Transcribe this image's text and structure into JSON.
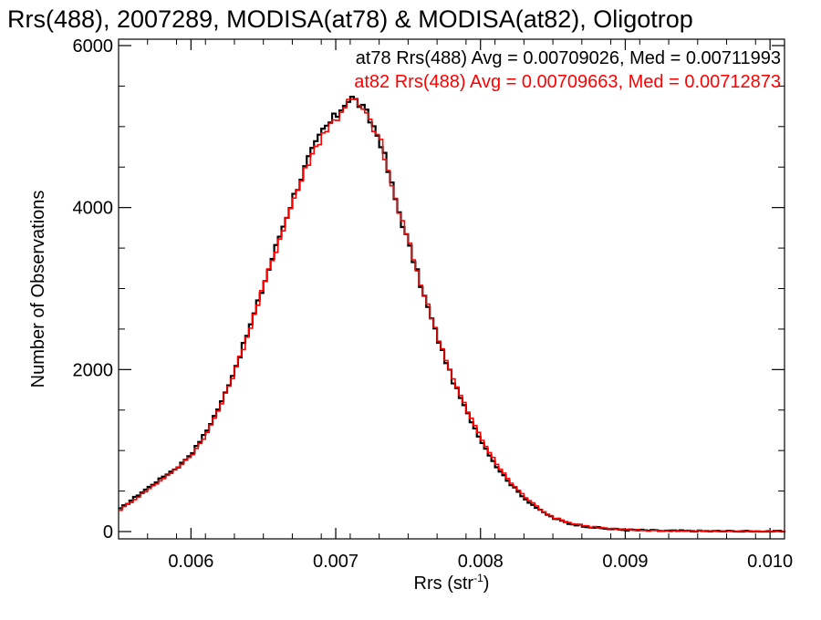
{
  "chart_data": {
    "type": "line",
    "title": "Rrs(488), 2007289, MODISA(at78) & MODISA(at82), Oligotrop",
    "xlabel_main": "Rrs (str",
    "xlabel_sup": "-1",
    "xlabel_close": ")",
    "ylabel": "Number of Observations",
    "xlim": [
      0.0055,
      0.0101
    ],
    "ylim": [
      0,
      6000
    ],
    "x_tick_labels": [
      {
        "value": 0.006,
        "label": "0.006"
      },
      {
        "value": 0.007,
        "label": "0.007"
      },
      {
        "value": 0.008,
        "label": "0.008"
      },
      {
        "value": 0.009,
        "label": "0.009"
      },
      {
        "value": 0.01,
        "label": "0.010"
      }
    ],
    "y_tick_labels": [
      {
        "value": 0,
        "label": "0"
      },
      {
        "value": 2000,
        "label": "2000"
      },
      {
        "value": 4000,
        "label": "4000"
      },
      {
        "value": 6000,
        "label": "6000"
      }
    ],
    "grid": false,
    "histogram_style": "step",
    "annotations": [
      {
        "text": "at78 Rrs(488) Avg = 0.00709026, Med = 0.00711993",
        "color": "#000000"
      },
      {
        "text": "at82 Rrs(488) Avg = 0.00709663, Med = 0.00712873",
        "color": "#ff0000"
      }
    ],
    "x": [
      0.0055,
      0.0056,
      0.0057,
      0.0058,
      0.0059,
      0.006,
      0.0061,
      0.0062,
      0.0063,
      0.0064,
      0.0065,
      0.0066,
      0.0067,
      0.0068,
      0.0069,
      0.007,
      0.00705,
      0.0071,
      0.00715,
      0.0072,
      0.00725,
      0.0073,
      0.0074,
      0.0075,
      0.0076,
      0.0077,
      0.0078,
      0.0079,
      0.008,
      0.0081,
      0.0082,
      0.0083,
      0.0084,
      0.0085,
      0.0086,
      0.0087,
      0.0088,
      0.0089,
      0.009,
      0.0091,
      0.0092,
      0.0093,
      0.0094,
      0.0095,
      0.0096,
      0.0097,
      0.0098,
      0.0099,
      0.01,
      0.0101
    ],
    "series": [
      {
        "name": "at78",
        "color": "#000000",
        "values": [
          280,
          420,
          550,
          680,
          800,
          980,
          1250,
          1600,
          2050,
          2550,
          3100,
          3650,
          4150,
          4600,
          4950,
          5150,
          5300,
          5350,
          5280,
          5150,
          5000,
          4800,
          4100,
          3500,
          2900,
          2350,
          1850,
          1450,
          1100,
          800,
          580,
          400,
          260,
          160,
          100,
          70,
          45,
          30,
          20,
          15,
          10,
          8,
          6,
          5,
          4,
          3,
          2,
          2,
          1,
          1
        ]
      },
      {
        "name": "at82",
        "color": "#ff0000",
        "values": [
          270,
          400,
          530,
          660,
          790,
          960,
          1220,
          1580,
          2020,
          2530,
          3080,
          3620,
          4120,
          4570,
          4920,
          5120,
          5270,
          5330,
          5260,
          5130,
          4990,
          4790,
          4100,
          3520,
          2920,
          2380,
          1880,
          1480,
          1130,
          830,
          600,
          420,
          275,
          170,
          110,
          75,
          50,
          33,
          22,
          16,
          11,
          8,
          6,
          5,
          4,
          3,
          2,
          2,
          1,
          1
        ]
      }
    ]
  }
}
